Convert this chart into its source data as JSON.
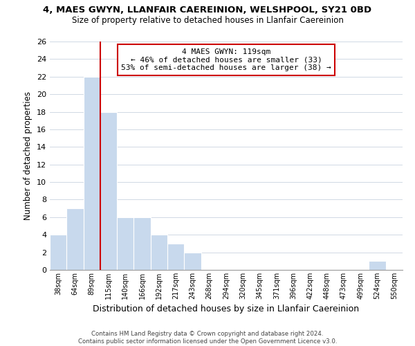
{
  "title": "4, MAES GWYN, LLANFAIR CAEREINION, WELSHPOOL, SY21 0BD",
  "subtitle": "Size of property relative to detached houses in Llanfair Caereinion",
  "xlabel": "Distribution of detached houses by size in Llanfair Caereinion",
  "ylabel": "Number of detached properties",
  "bar_color": "#c8d9ed",
  "vline_color": "#cc0000",
  "vline_x": 3.0,
  "categories": [
    "38sqm",
    "64sqm",
    "89sqm",
    "115sqm",
    "140sqm",
    "166sqm",
    "192sqm",
    "217sqm",
    "243sqm",
    "268sqm",
    "294sqm",
    "320sqm",
    "345sqm",
    "371sqm",
    "396sqm",
    "422sqm",
    "448sqm",
    "473sqm",
    "499sqm",
    "524sqm",
    "550sqm"
  ],
  "values": [
    4,
    7,
    22,
    18,
    6,
    6,
    4,
    3,
    2,
    0,
    0,
    0,
    0,
    0,
    0,
    0,
    0,
    0,
    0,
    1,
    0
  ],
  "ylim": [
    0,
    26
  ],
  "yticks": [
    0,
    2,
    4,
    6,
    8,
    10,
    12,
    14,
    16,
    18,
    20,
    22,
    24,
    26
  ],
  "annotation_line1": "4 MAES GWYN: 119sqm",
  "annotation_line2": "← 46% of detached houses are smaller (33)",
  "annotation_line3": "53% of semi-detached houses are larger (38) →",
  "annotation_box_color": "#ffffff",
  "annotation_box_edge": "#cc0000",
  "footer_line1": "Contains HM Land Registry data © Crown copyright and database right 2024.",
  "footer_line2": "Contains public sector information licensed under the Open Government Licence v3.0.",
  "background_color": "#ffffff",
  "grid_color": "#d0d8e4"
}
